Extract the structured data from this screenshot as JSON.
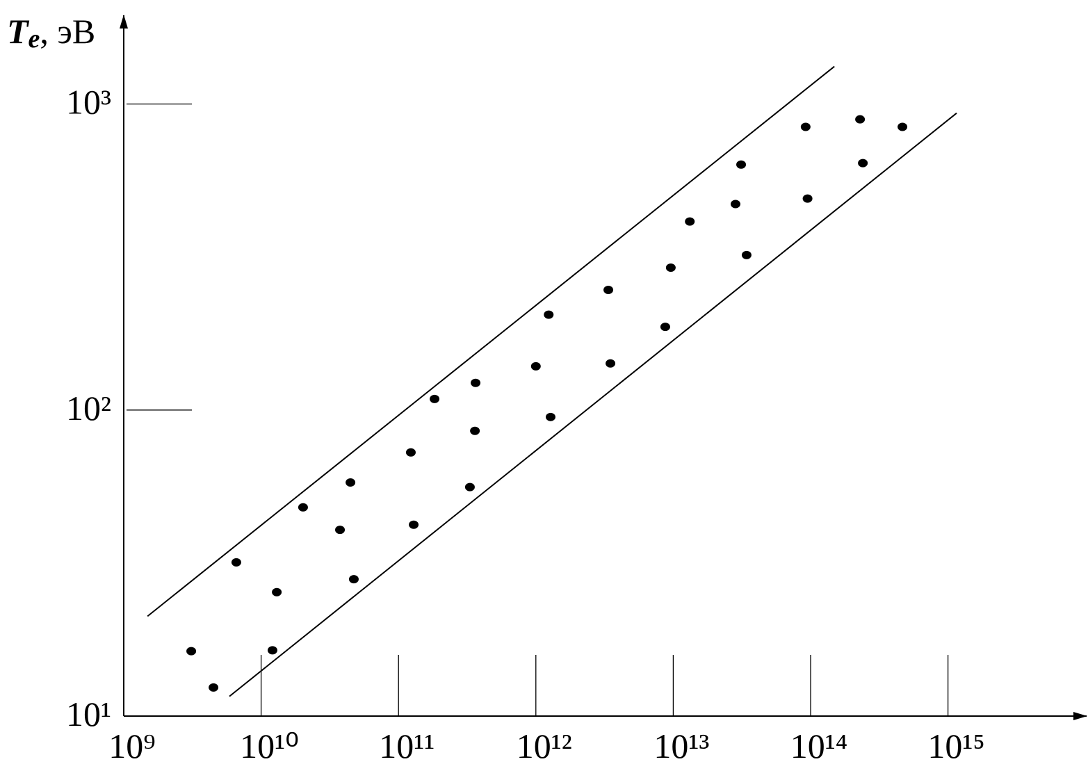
{
  "chart_data": {
    "type": "scatter",
    "ylabel": "Te, эВ",
    "xscale": "log",
    "yscale": "log",
    "xlim": [
      1000000000.0,
      1e+16
    ],
    "ylim": [
      10,
      1970
    ],
    "xticks": [
      {
        "value": 1000000000.0,
        "label": "10⁹"
      },
      {
        "value": 10000000000.0,
        "label": "10¹⁰"
      },
      {
        "value": 100000000000.0,
        "label": "10¹¹"
      },
      {
        "value": 1000000000000.0,
        "label": "10¹²"
      },
      {
        "value": 10000000000000.0,
        "label": "10¹³"
      },
      {
        "value": 100000000000000.0,
        "label": "10¹⁴"
      },
      {
        "value": 1000000000000000.0,
        "label": "10¹⁵"
      }
    ],
    "yticks": [
      {
        "value": 10,
        "label": "10¹"
      },
      {
        "value": 100,
        "label": "10²"
      },
      {
        "value": 1000,
        "label": "10³"
      }
    ],
    "color": "#000000",
    "x": [
      3100000000.0,
      4500000000.0,
      6600000000.0,
      13000000000.0,
      12100000000.0,
      20200000000.0,
      37500000000.0,
      44700000000.0,
      47300000000.0,
      123000000000.0,
      129000000000.0,
      183000000000.0,
      364000000000.0,
      360000000000.0,
      331000000000.0,
      1000000000000.0,
      1240000000000.0,
      1280000000000.0,
      3370000000000.0,
      3490000000000.0,
      8750000000000.0,
      9600000000000.0,
      13200000000000.0,
      28400000000000.0,
      31200000000000.0,
      34200000000000.0,
      92000000000000.0,
      95000000000000.0,
      229000000000000.0,
      240000000000000.0,
      466000000000000.0
    ],
    "y": [
      16.3,
      12.4,
      31.8,
      25.4,
      16.4,
      48.1,
      40.6,
      58,
      28,
      72.7,
      42.2,
      108.7,
      122.7,
      85.5,
      56,
      139,
      205,
      94.9,
      247,
      142,
      187,
      292,
      413,
      471,
      634,
      321,
      842,
      491,
      891,
      641,
      842
    ],
    "lines": [
      {
        "x": [
          1490000000.0,
          149000000000000.0
        ],
        "y": [
          21.2,
          1327
        ]
      },
      {
        "x": [
          5880000000.0,
          1156000000000000.0
        ],
        "y": [
          11.6,
          934
        ]
      }
    ]
  }
}
